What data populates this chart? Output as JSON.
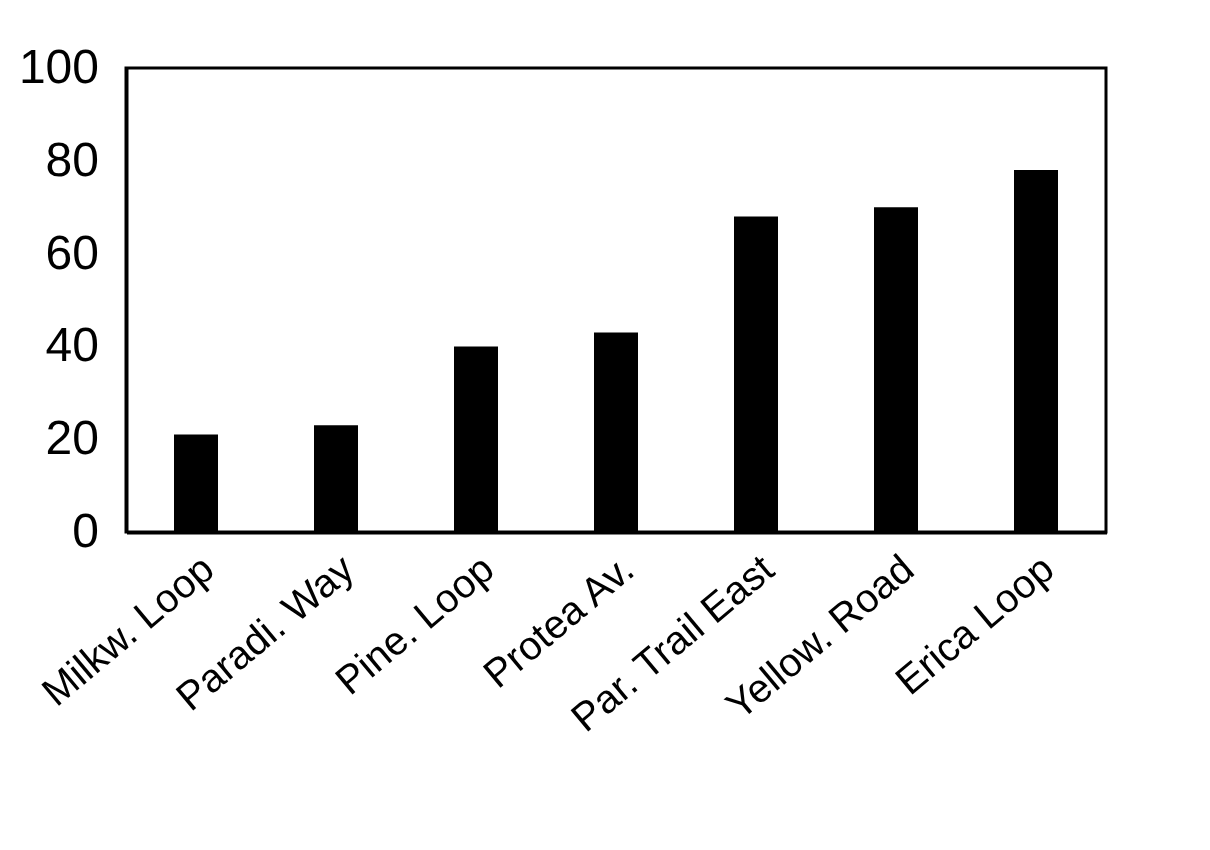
{
  "chart_data": {
    "type": "bar",
    "categories": [
      "Milkw. Loop",
      "Paradi. Way",
      "Pine. Loop",
      "Protea Av.",
      "Par. Trail East",
      "Yellow. Road",
      "Erica Loop"
    ],
    "values": [
      21,
      23,
      40,
      43,
      68,
      70,
      78
    ],
    "color": "#000000",
    "ylim": [
      0,
      100
    ],
    "yticks": [
      0,
      20,
      40,
      60,
      80,
      100
    ],
    "grid": false
  }
}
